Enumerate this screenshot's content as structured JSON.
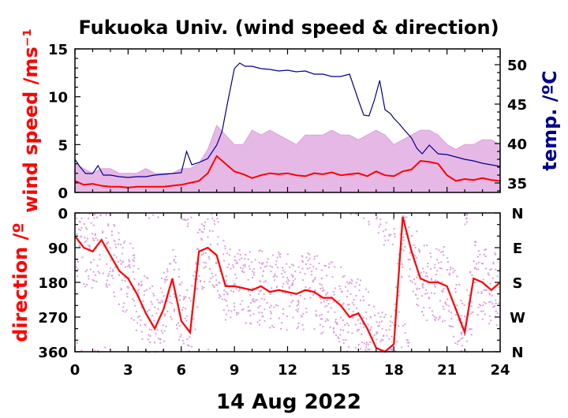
{
  "title": "Fukuoka Univ. (wind speed & direction)",
  "xlabel": "14 Aug 2022",
  "colors": {
    "speed": "#ff0000",
    "gust": "#dda0dd",
    "temp": "#00008b",
    "dir": "#ff0000",
    "dir_scatter": "#dda0dd",
    "text": "#000000"
  },
  "chart_data": [
    {
      "type": "line",
      "panel": "top",
      "ylabel": "wind speed /ms⁻¹",
      "y2label": "temp. /ºC",
      "xlim": [
        0,
        24
      ],
      "ylim": [
        0,
        15
      ],
      "y2lim": [
        33.8,
        52
      ],
      "xticks": [
        "0",
        "3",
        "6",
        "9",
        "12",
        "15",
        "18",
        "21",
        "24"
      ],
      "yticks": [
        "0",
        "5",
        "10",
        "15"
      ],
      "y2ticks": [
        "35",
        "40",
        "45",
        "50"
      ],
      "series": [
        {
          "key": "gust",
          "role": "gust",
          "x": [
            0,
            0.5,
            1,
            1.5,
            2,
            2.5,
            3,
            3.5,
            4,
            4.5,
            5,
            5.5,
            6,
            6.5,
            7,
            7.5,
            8,
            8.5,
            9,
            9.5,
            10,
            10.5,
            11,
            11.5,
            12,
            12.5,
            13,
            13.5,
            14,
            14.5,
            15,
            15.5,
            16,
            16.5,
            17,
            17.5,
            18,
            18.5,
            19,
            19.5,
            20,
            20.5,
            21,
            21.5,
            22,
            22.5,
            23,
            23.5,
            24
          ],
          "y": [
            3,
            2.5,
            2,
            2.5,
            2.5,
            2,
            2,
            2,
            2.5,
            2,
            2,
            2,
            2.5,
            2.5,
            3,
            4.5,
            7,
            6,
            5,
            5,
            6.5,
            6,
            6.5,
            6,
            5.5,
            5,
            6,
            6,
            6,
            6.5,
            6,
            6,
            5.5,
            6,
            6.5,
            6,
            5,
            5.5,
            6,
            6.5,
            6.5,
            6,
            5,
            4.5,
            5,
            5,
            5.5,
            5.5,
            5
          ]
        },
        {
          "key": "speed",
          "role": "speed",
          "x": [
            0,
            0.5,
            1,
            1.5,
            2,
            2.5,
            3,
            3.5,
            4,
            4.5,
            5,
            5.5,
            6,
            6.5,
            7,
            7.5,
            8,
            8.5,
            9,
            9.5,
            10,
            10.5,
            11,
            11.5,
            12,
            12.5,
            13,
            13.5,
            14,
            14.5,
            15,
            15.5,
            16,
            16.5,
            17,
            17.5,
            18,
            18.5,
            19,
            19.5,
            20,
            20.5,
            21,
            21.5,
            22,
            22.5,
            23,
            23.5,
            24
          ],
          "y": [
            1.2,
            0.8,
            0.9,
            0.7,
            0.6,
            0.6,
            0.5,
            0.6,
            0.6,
            0.6,
            0.6,
            0.7,
            0.8,
            1,
            1.2,
            2,
            3.8,
            3,
            2.2,
            1.9,
            1.5,
            1.8,
            2,
            1.9,
            2,
            1.8,
            1.7,
            2,
            1.9,
            2.1,
            1.8,
            1.9,
            2,
            1.7,
            2.2,
            1.8,
            1.7,
            2.2,
            2.4,
            3.3,
            3.2,
            3,
            1.8,
            1.2,
            1.4,
            1.3,
            1.5,
            1.3,
            1.2
          ]
        },
        {
          "key": "temp",
          "role": "temp",
          "axis": "right",
          "x": [
            0,
            0.3,
            0.6,
            1,
            1.3,
            1.6,
            2,
            2.5,
            3,
            3.5,
            4,
            4.5,
            5,
            5.5,
            6,
            6.3,
            6.6,
            7,
            7.5,
            8,
            8.3,
            8.6,
            9,
            9.3,
            9.6,
            10,
            10.5,
            11,
            11.5,
            12,
            12.5,
            13,
            13.5,
            14,
            14.5,
            15,
            15.5,
            16,
            16.3,
            16.6,
            16.9,
            17.2,
            17.5,
            17.8,
            18,
            18.3,
            18.6,
            19,
            19.3,
            19.6,
            20,
            20.5,
            21,
            21.5,
            22,
            22.5,
            23,
            23.5,
            24
          ],
          "y": [
            38,
            37,
            36.2,
            36.2,
            37.2,
            36,
            36,
            35.8,
            35.7,
            35.8,
            35.8,
            36,
            36.1,
            36.2,
            36.3,
            39,
            37.3,
            37.6,
            38.1,
            39.8,
            41.5,
            45,
            49.5,
            50.2,
            49.8,
            49.8,
            49.5,
            49.4,
            49.2,
            49.3,
            49.1,
            49.2,
            48.8,
            48.8,
            48.5,
            48.5,
            48.8,
            45.5,
            43.6,
            43.5,
            45.5,
            48,
            44.3,
            43.8,
            43.2,
            42.5,
            41.7,
            40.7,
            39.4,
            38.7,
            39.8,
            38.7,
            38.6,
            38.3,
            38,
            37.8,
            37.5,
            37.3,
            37.1
          ]
        }
      ]
    },
    {
      "type": "scatter",
      "panel": "bottom",
      "ylabel": "direction /º",
      "xlim": [
        0,
        24
      ],
      "ylim": [
        0,
        360
      ],
      "yticks": [
        "0",
        "90",
        "180",
        "270",
        "360"
      ],
      "y2ticks": [
        "N",
        "E",
        "S",
        "W",
        "N"
      ],
      "series": [
        {
          "key": "dir",
          "role": "dir",
          "x": [
            0,
            0.5,
            1,
            1.5,
            2,
            2.5,
            3,
            3.5,
            4,
            4.5,
            5,
            5.5,
            6,
            6.5,
            7,
            7.5,
            8,
            8.5,
            9,
            9.5,
            10,
            10.5,
            11,
            11.5,
            12,
            12.5,
            13,
            13.5,
            14,
            14.5,
            15,
            15.5,
            16,
            16.5,
            17,
            17.5,
            18,
            18.5,
            19,
            19.5,
            20,
            20.5,
            21,
            21.5,
            22,
            22.5,
            23,
            23.5,
            24
          ],
          "y": [
            60,
            90,
            100,
            70,
            110,
            150,
            170,
            210,
            260,
            300,
            250,
            170,
            280,
            310,
            100,
            90,
            110,
            190,
            190,
            195,
            200,
            190,
            205,
            200,
            205,
            210,
            200,
            205,
            220,
            220,
            240,
            270,
            260,
            300,
            350,
            360,
            340,
            10,
            100,
            170,
            180,
            180,
            190,
            250,
            310,
            170,
            180,
            200,
            180
          ]
        }
      ]
    }
  ]
}
